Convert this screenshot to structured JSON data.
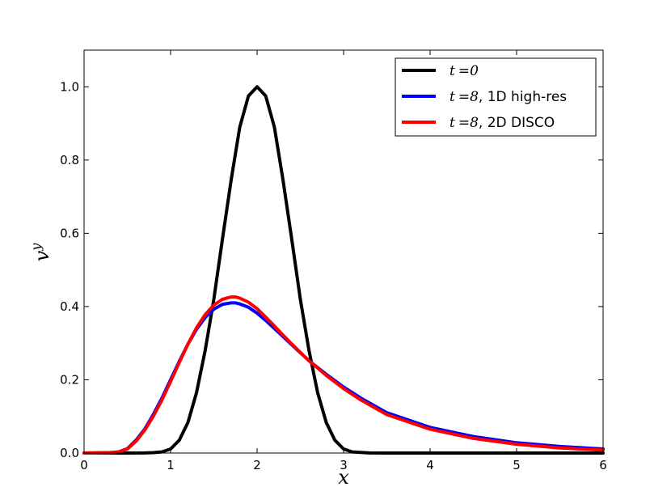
{
  "chart_data": {
    "type": "line",
    "xlabel": "x",
    "ylabel": "v",
    "ylabel_superscript": "y",
    "xlim": [
      0,
      6
    ],
    "ylim": [
      0,
      1.1
    ],
    "xticks": [
      0,
      1,
      2,
      3,
      4,
      5,
      6
    ],
    "xtick_labels": [
      "0",
      "1",
      "2",
      "3",
      "4",
      "5",
      "6"
    ],
    "yticks": [
      0,
      0.2,
      0.4,
      0.6,
      0.8,
      1.0
    ],
    "ytick_labels": [
      "0.0",
      "0.2",
      "0.4",
      "0.6",
      "0.8",
      "1.0"
    ],
    "grid": false,
    "legend_position": "top-right",
    "series": [
      {
        "name": "t = 0",
        "legend_math": "t",
        "legend_eq": "=",
        "legend_val": "0",
        "legend_suffix": "",
        "color": "#000000",
        "x": [
          0,
          0.5,
          0.7,
          0.8,
          0.9,
          1.0,
          1.1,
          1.2,
          1.3,
          1.4,
          1.5,
          1.6,
          1.7,
          1.8,
          1.9,
          2.0,
          2.1,
          2.2,
          2.3,
          2.4,
          2.5,
          2.6,
          2.7,
          2.8,
          2.9,
          3.0,
          3.1,
          3.3,
          3.5,
          4.0,
          6.0
        ],
        "y": [
          0,
          0,
          0.0002,
          0.001,
          0.003,
          0.011,
          0.035,
          0.083,
          0.165,
          0.28,
          0.42,
          0.585,
          0.745,
          0.89,
          0.975,
          1.0,
          0.975,
          0.89,
          0.745,
          0.585,
          0.42,
          0.28,
          0.165,
          0.083,
          0.035,
          0.011,
          0.003,
          0.0003,
          0,
          0,
          0
        ]
      },
      {
        "name": "t = 8, 1D high-res",
        "legend_math": "t",
        "legend_eq": "=",
        "legend_val": "8",
        "legend_suffix": ", 1D high-res",
        "color": "#0000ff",
        "x": [
          0,
          0.3,
          0.4,
          0.5,
          0.6,
          0.7,
          0.8,
          0.9,
          1.0,
          1.1,
          1.2,
          1.3,
          1.4,
          1.5,
          1.6,
          1.7,
          1.75,
          1.8,
          1.9,
          2.0,
          2.1,
          2.2,
          2.3,
          2.4,
          2.5,
          2.6,
          2.8,
          3.0,
          3.2,
          3.5,
          4.0,
          4.5,
          5.0,
          5.5,
          6.0
        ],
        "y": [
          0,
          0.001,
          0.003,
          0.012,
          0.035,
          0.065,
          0.105,
          0.15,
          0.2,
          0.25,
          0.297,
          0.338,
          0.37,
          0.393,
          0.406,
          0.41,
          0.41,
          0.407,
          0.398,
          0.382,
          0.362,
          0.34,
          0.318,
          0.296,
          0.274,
          0.252,
          0.215,
          0.18,
          0.15,
          0.11,
          0.07,
          0.045,
          0.028,
          0.018,
          0.011
        ]
      },
      {
        "name": "t = 8, 2D DISCO",
        "legend_math": "t",
        "legend_eq": "=",
        "legend_val": "8",
        "legend_suffix": ", 2D DISCO",
        "color": "#ff0000",
        "x": [
          0,
          0.3,
          0.4,
          0.5,
          0.6,
          0.7,
          0.8,
          0.9,
          1.0,
          1.1,
          1.2,
          1.3,
          1.4,
          1.5,
          1.6,
          1.7,
          1.75,
          1.8,
          1.9,
          2.0,
          2.1,
          2.2,
          2.3,
          2.4,
          2.5,
          2.6,
          2.8,
          3.0,
          3.2,
          3.5,
          4.0,
          4.5,
          5.0,
          5.5,
          6.0
        ],
        "y": [
          0,
          0.001,
          0.003,
          0.011,
          0.032,
          0.062,
          0.1,
          0.145,
          0.195,
          0.247,
          0.297,
          0.342,
          0.378,
          0.404,
          0.42,
          0.426,
          0.426,
          0.423,
          0.412,
          0.394,
          0.371,
          0.347,
          0.322,
          0.298,
          0.275,
          0.252,
          0.212,
          0.176,
          0.145,
          0.105,
          0.065,
          0.04,
          0.024,
          0.014,
          0.008
        ]
      }
    ]
  }
}
